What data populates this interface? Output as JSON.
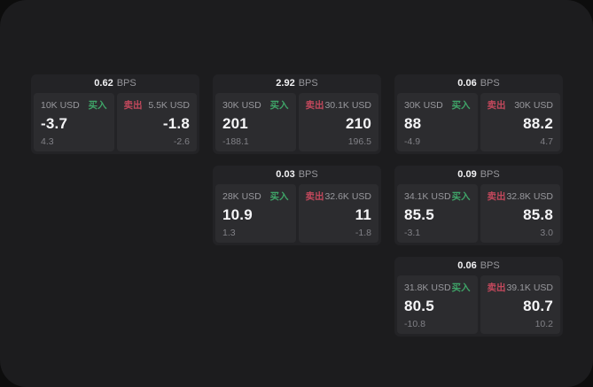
{
  "labels": {
    "unit": "BPS",
    "buy": "买入",
    "sell": "卖出"
  },
  "colors": {
    "buy": "#3fa468",
    "sell": "#c2485c",
    "panel_bg": "#1c1c1e",
    "card_bg": "#232326",
    "cell_bg": "#2c2c2f"
  },
  "cards": [
    {
      "bps": "0.62",
      "buy": {
        "size": "10K USD",
        "price": "-3.7",
        "delta": "4.3"
      },
      "sell": {
        "size": "5.5K USD",
        "price": "-1.8",
        "delta": "-2.6"
      }
    },
    {
      "bps": "2.92",
      "buy": {
        "size": "30K USD",
        "price": "201",
        "delta": "-188.1"
      },
      "sell": {
        "size": "30.1K USD",
        "price": "210",
        "delta": "196.5"
      }
    },
    {
      "bps": "0.06",
      "buy": {
        "size": "30K USD",
        "price": "88",
        "delta": "-4.9"
      },
      "sell": {
        "size": "30K USD",
        "price": "88.2",
        "delta": "4.7"
      }
    },
    {
      "bps": "0.03",
      "buy": {
        "size": "28K USD",
        "price": "10.9",
        "delta": "1.3"
      },
      "sell": {
        "size": "32.6K USD",
        "price": "11",
        "delta": "-1.8"
      }
    },
    {
      "bps": "0.09",
      "buy": {
        "size": "34.1K USD",
        "price": "85.5",
        "delta": "-3.1"
      },
      "sell": {
        "size": "32.8K USD",
        "price": "85.8",
        "delta": "3.0"
      }
    },
    {
      "bps": "0.06",
      "buy": {
        "size": "31.8K USD",
        "price": "80.5",
        "delta": "-10.8"
      },
      "sell": {
        "size": "39.1K USD",
        "price": "80.7",
        "delta": "10.2"
      }
    }
  ]
}
